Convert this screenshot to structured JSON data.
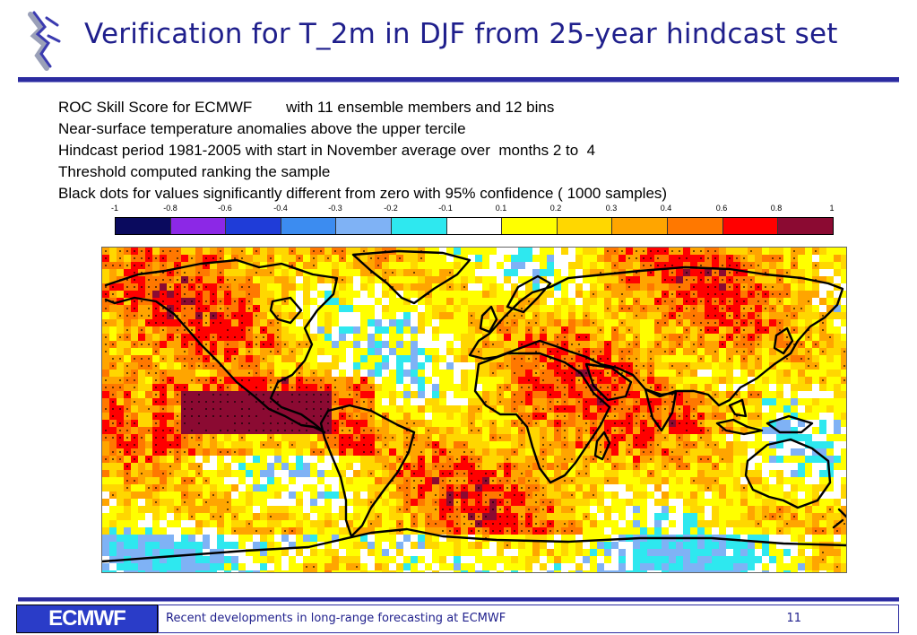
{
  "header": {
    "title": "Verification for T_2m in DJF from 25-year hindcast set"
  },
  "info_lines": [
    "ROC Skill Score for ECMWF        with 11 ensemble members and 12 bins",
    "Near-surface temperature anomalies above the upper tercile",
    "Hindcast period 1981-2005 with start in November average over  months 2 to  4",
    "Threshold computed ranking the sample",
    "Black dots for values significantly different from zero with 95% confidence ( 1000 samples)"
  ],
  "color_scale": {
    "labels": [
      "-1",
      "-0.8",
      "-0.6",
      "-0.4",
      "-0.3",
      "-0.2",
      "-0.1",
      "0.1",
      "0.2",
      "0.3",
      "0.4",
      "0.6",
      "0.8",
      "1"
    ],
    "colors": [
      "#0a0a5e",
      "#8c28e6",
      "#1f3cd8",
      "#3c8cf0",
      "#7fb2f5",
      "#2ee8ef",
      "#ffffff",
      "#ffff00",
      "#ffd700",
      "#ffa500",
      "#ff7800",
      "#ff0000",
      "#8b0a32"
    ]
  },
  "map": {
    "field": "ROC skill score, T_2m DJF",
    "dominant_value_range": [
      0.1,
      0.6
    ],
    "colors": {
      "ocean_background": "#ffe000",
      "coastline": "#000000"
    }
  },
  "footer": {
    "logo_text": "ECMWF",
    "text": "Recent developments in long-range forecasting at ECMWF",
    "page": "11"
  }
}
